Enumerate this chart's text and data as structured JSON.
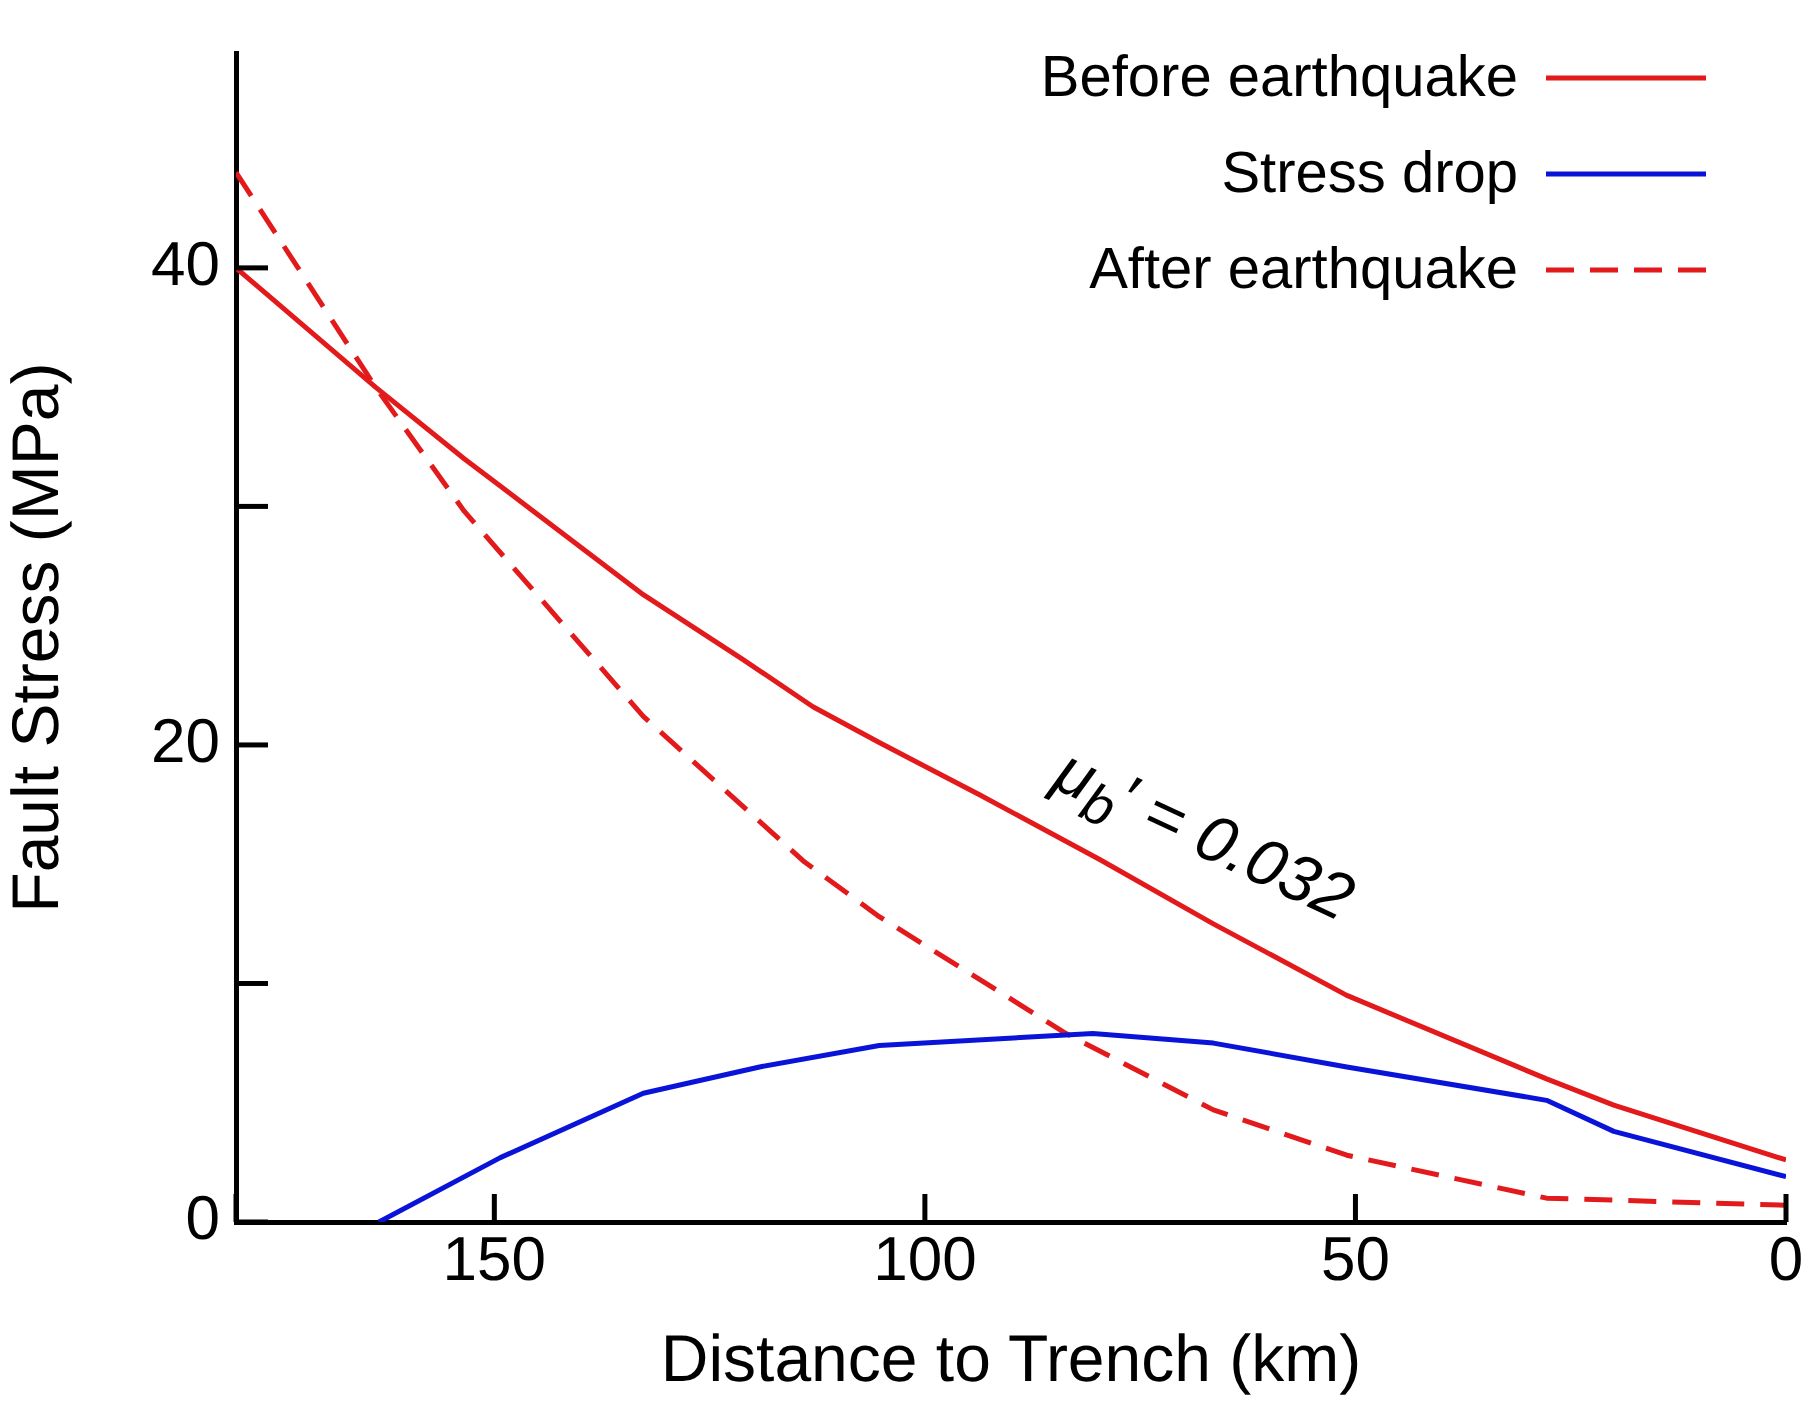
{
  "chart_data": {
    "type": "line",
    "xlabel": "Distance to Trench (km)",
    "ylabel": "Fault Stress (MPa)",
    "xlim": [
      180,
      0
    ],
    "xticks": [
      {
        "value": 180,
        "label": null
      },
      150,
      100,
      50,
      0
    ],
    "ylim": [
      0,
      49
    ],
    "yticks": [
      0,
      {
        "value": 10,
        "label": null
      },
      20,
      {
        "value": 30,
        "label": null
      },
      40
    ],
    "grid": false,
    "legend": "top right",
    "marker": "none",
    "annotations": [
      {
        "text": "μ$_{b}$′ = 0.032",
        "x": 66,
        "y": 12.5
      }
    ],
    "series": [
      {
        "name": "Before earthquake",
        "color": "#e31a1c",
        "line_style": "solid",
        "x": [
          180,
          163.8,
          153.5,
          132.7,
          121.2,
          113,
          105.3,
          93.6,
          79.7,
          66.5,
          51,
          27.8,
          20,
          0
        ],
        "values": [
          40,
          35,
          32,
          26.3,
          23.6,
          21.6,
          20.1,
          17.9,
          15.2,
          12.5,
          9.5,
          6,
          4.9,
          2.6
        ]
      },
      {
        "name": "Stress drop",
        "color": "#0a14d8",
        "line_style": "solid",
        "x": [
          163.4,
          149.3,
          132.7,
          119.2,
          105.3,
          80.5,
          66.5,
          51,
          27.8,
          20,
          0
        ],
        "values": [
          0,
          2.7,
          5.4,
          6.5,
          7.4,
          7.9,
          7.5,
          6.5,
          5.1,
          3.8,
          1.9
        ]
      },
      {
        "name": "After earthquake",
        "color": "#e31a1c",
        "line_style": "dashed",
        "x": [
          180,
          163.8,
          153.5,
          132.7,
          114,
          105.3,
          83.6,
          66.5,
          51,
          27.8,
          0
        ],
        "values": [
          44,
          35,
          29.8,
          21.2,
          15.1,
          12.8,
          7.9,
          4.7,
          2.8,
          1,
          0.7
        ]
      }
    ]
  }
}
